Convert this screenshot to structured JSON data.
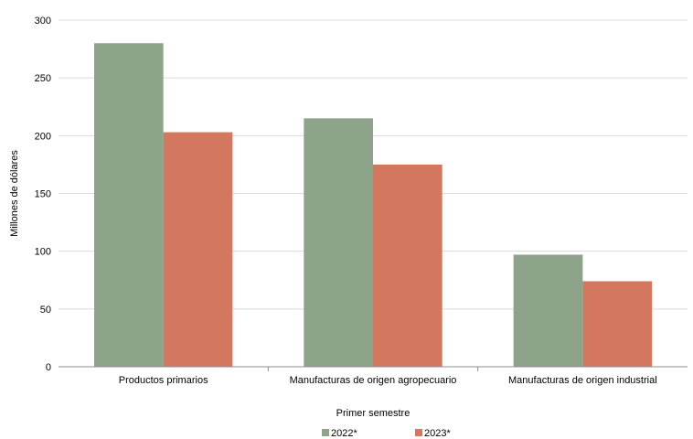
{
  "chart_data": {
    "type": "bar",
    "title": "",
    "xlabel": "Primer semestre",
    "ylabel": "Millones de dólares",
    "categories": [
      "Productos primarios",
      "Manufacturas de origen agropecuario",
      "Manufacturas de origen industrial"
    ],
    "series": [
      {
        "name": "2022*",
        "color": "#8da38a",
        "values": [
          280,
          215,
          97
        ]
      },
      {
        "name": "2023*",
        "color": "#d4775f",
        "values": [
          203,
          175,
          74
        ]
      }
    ],
    "ylim": [
      0,
      300
    ],
    "yticks": [
      0,
      50,
      100,
      150,
      200,
      250,
      300
    ],
    "grid": true,
    "legend_position": "bottom"
  }
}
